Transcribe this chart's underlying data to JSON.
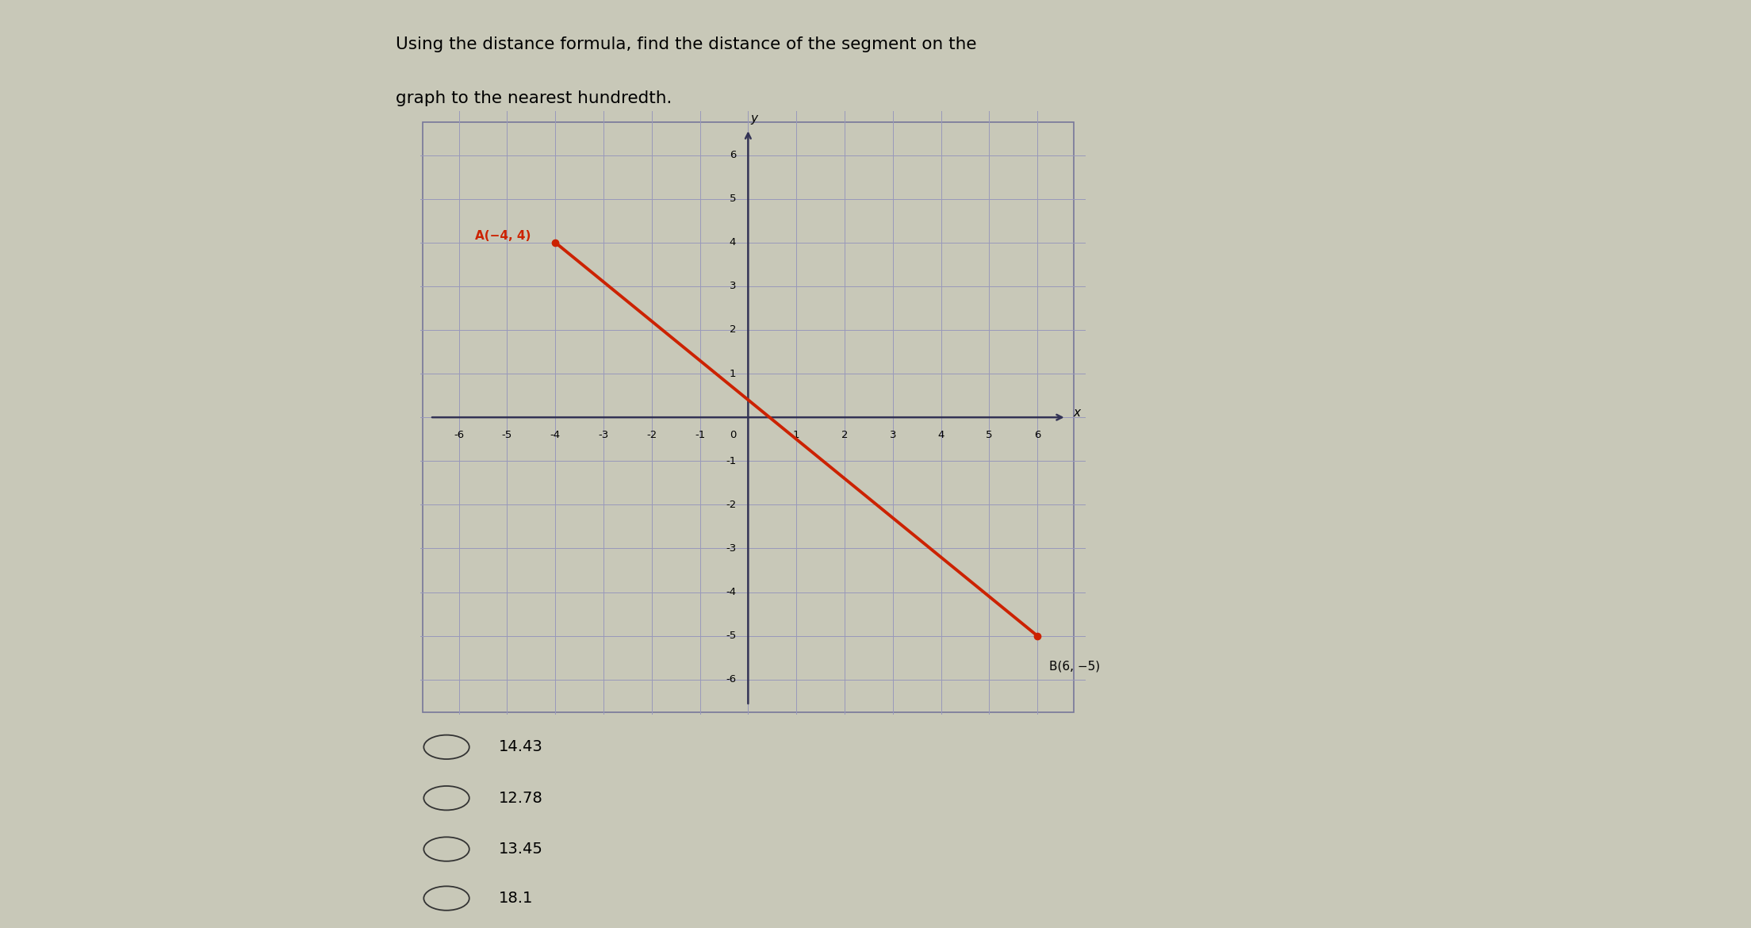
{
  "title_line1": "Using the distance formula, find the distance of the segment on the",
  "title_line2": "graph to the nearest hundredth.",
  "point_A": [
    -4,
    4
  ],
  "point_B": [
    6,
    -5
  ],
  "label_A": "A(−4, 4)",
  "label_B": "B(6, −5)",
  "line_color": "#cc2200",
  "point_color": "#cc2200",
  "axis_color": "#333355",
  "grid_color": "#9999bb",
  "bg_color": "#dcdce8",
  "panel_bg": "#c8c8b8",
  "graph_bg": "#dcdce8",
  "x_range": [
    -6,
    6
  ],
  "y_range": [
    -6,
    6
  ],
  "choices": [
    "14.43",
    "12.78",
    "13.45",
    "18.1"
  ],
  "title_fontsize": 15.5,
  "label_fontsize": 11,
  "tick_fontsize": 9.5,
  "choice_fontsize": 14
}
